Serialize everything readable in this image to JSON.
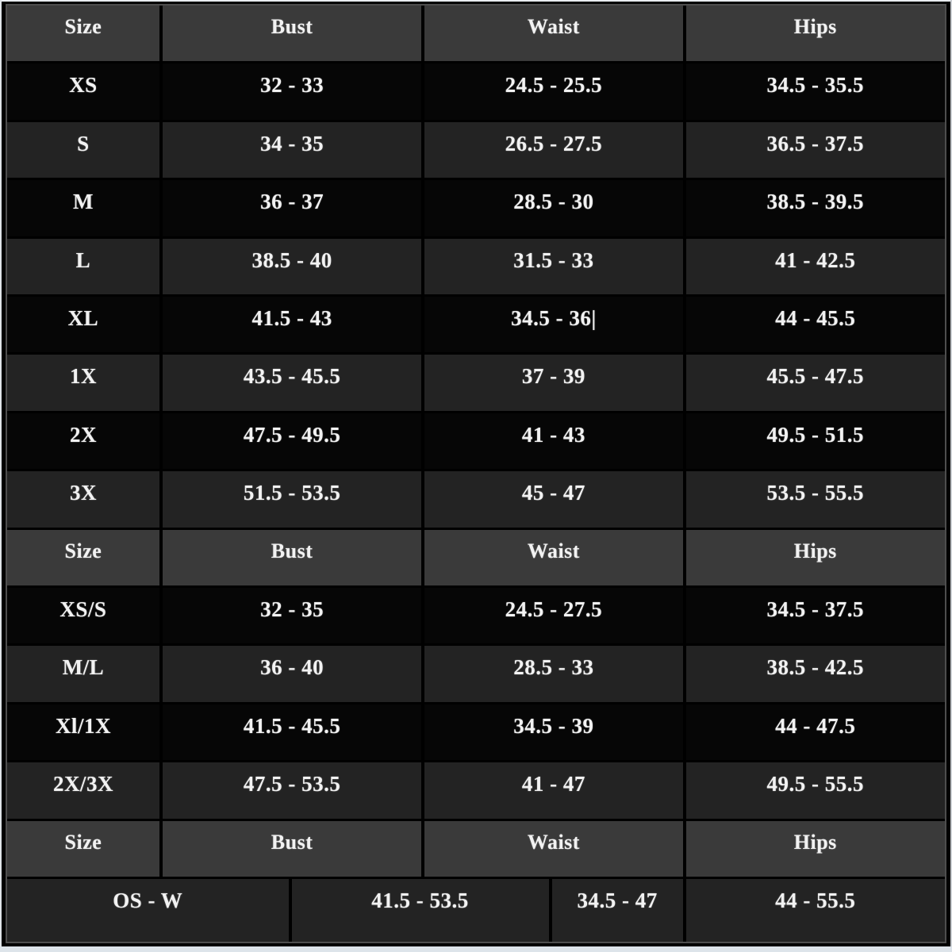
{
  "colors": {
    "page_background": "#000000",
    "header_row_background": "#3a3a3a",
    "gray_row_background": "#232323",
    "black_row_background": "#060606",
    "cell_divider": "#000000",
    "outer_border": "#4e4e4e",
    "text": "#f2f2f2",
    "photo_edge_light": "#e9edf0",
    "photo_edge_bottom": "#dde4ea"
  },
  "table": {
    "col_headers": [
      "Size",
      "Bust",
      "Waist",
      "Hips"
    ],
    "sections": [
      {
        "name": "individual-sizes",
        "header": [
          "Size",
          "Bust",
          "Waist",
          "Hips"
        ],
        "rows": [
          {
            "cells": [
              "XS",
              "32 - 33",
              "24.5 - 25.5",
              "34.5 - 35.5"
            ],
            "variant": "black"
          },
          {
            "cells": [
              "S",
              "34 - 35",
              "26.5 - 27.5",
              "36.5 - 37.5"
            ],
            "variant": "gray"
          },
          {
            "cells": [
              "M",
              "36 - 37",
              "28.5 - 30",
              "38.5 - 39.5"
            ],
            "variant": "black"
          },
          {
            "cells": [
              "L",
              "38.5 - 40",
              "31.5 - 33",
              "41 - 42.5"
            ],
            "variant": "gray"
          },
          {
            "cells": [
              "XL",
              "41.5 - 43",
              "34.5 - 36|",
              "44 - 45.5"
            ],
            "variant": "black"
          },
          {
            "cells": [
              "1X",
              "43.5 - 45.5",
              "37 - 39",
              "45.5 - 47.5"
            ],
            "variant": "gray"
          },
          {
            "cells": [
              "2X",
              "47.5 - 49.5",
              "41 - 43",
              "49.5 - 51.5"
            ],
            "variant": "black"
          },
          {
            "cells": [
              "3X",
              "51.5 - 53.5",
              "45 - 47",
              "53.5 - 55.5"
            ],
            "variant": "gray"
          }
        ]
      },
      {
        "name": "combined-sizes",
        "header": [
          "Size",
          "Bust",
          "Waist",
          "Hips"
        ],
        "rows": [
          {
            "cells": [
              "XS/S",
              "32 - 35",
              "24.5 - 27.5",
              "34.5 - 37.5"
            ],
            "variant": "black"
          },
          {
            "cells": [
              "M/L",
              "36 - 40",
              "28.5 - 33",
              "38.5 - 42.5"
            ],
            "variant": "gray"
          },
          {
            "cells": [
              "Xl/1X",
              "41.5 - 45.5",
              "34.5 - 39",
              "44 - 47.5"
            ],
            "variant": "black"
          },
          {
            "cells": [
              "2X/3X",
              "47.5 - 53.5",
              "41 - 47",
              "49.5 - 55.5"
            ],
            "variant": "gray"
          }
        ]
      },
      {
        "name": "one-size",
        "header": [
          "Size",
          "Bust",
          "Waist",
          "Hips"
        ],
        "rows": [
          {
            "cells": [
              "OS - W",
              "41.5 - 53.5",
              "34.5 - 47",
              "44 - 55.5"
            ],
            "variant": "gray",
            "layout": "footer"
          }
        ]
      }
    ]
  },
  "chart_data": [
    {
      "type": "table",
      "title": "Size chart - individual sizes",
      "columns": [
        "Size",
        "Bust",
        "Waist",
        "Hips"
      ],
      "rows": [
        [
          "XS",
          "32 - 33",
          "24.5 - 25.5",
          "34.5 - 35.5"
        ],
        [
          "S",
          "34 - 35",
          "26.5 - 27.5",
          "36.5 - 37.5"
        ],
        [
          "M",
          "36 - 37",
          "28.5 - 30",
          "38.5 - 39.5"
        ],
        [
          "L",
          "38.5 - 40",
          "31.5 - 33",
          "41 - 42.5"
        ],
        [
          "XL",
          "41.5 - 43",
          "34.5 - 36|",
          "44 - 45.5"
        ],
        [
          "1X",
          "43.5 - 45.5",
          "37 - 39",
          "45.5 - 47.5"
        ],
        [
          "2X",
          "47.5 - 49.5",
          "41 - 43",
          "49.5 - 51.5"
        ],
        [
          "3X",
          "51.5 - 53.5",
          "45 - 47",
          "53.5 - 55.5"
        ]
      ]
    },
    {
      "type": "table",
      "title": "Size chart - combined sizes",
      "columns": [
        "Size",
        "Bust",
        "Waist",
        "Hips"
      ],
      "rows": [
        [
          "XS/S",
          "32 - 35",
          "24.5 - 27.5",
          "34.5 - 37.5"
        ],
        [
          "M/L",
          "36 - 40",
          "28.5 - 33",
          "38.5 - 42.5"
        ],
        [
          "Xl/1X",
          "41.5 - 45.5",
          "34.5 - 39",
          "44 - 47.5"
        ],
        [
          "2X/3X",
          "47.5 - 53.5",
          "41 - 47",
          "49.5 - 55.5"
        ]
      ]
    },
    {
      "type": "table",
      "title": "Size chart - one size",
      "columns": [
        "Size",
        "Bust",
        "Waist",
        "Hips"
      ],
      "rows": [
        [
          "OS - W",
          "41.5 - 53.5",
          "34.5 - 47",
          "44 - 55.5"
        ]
      ]
    }
  ]
}
